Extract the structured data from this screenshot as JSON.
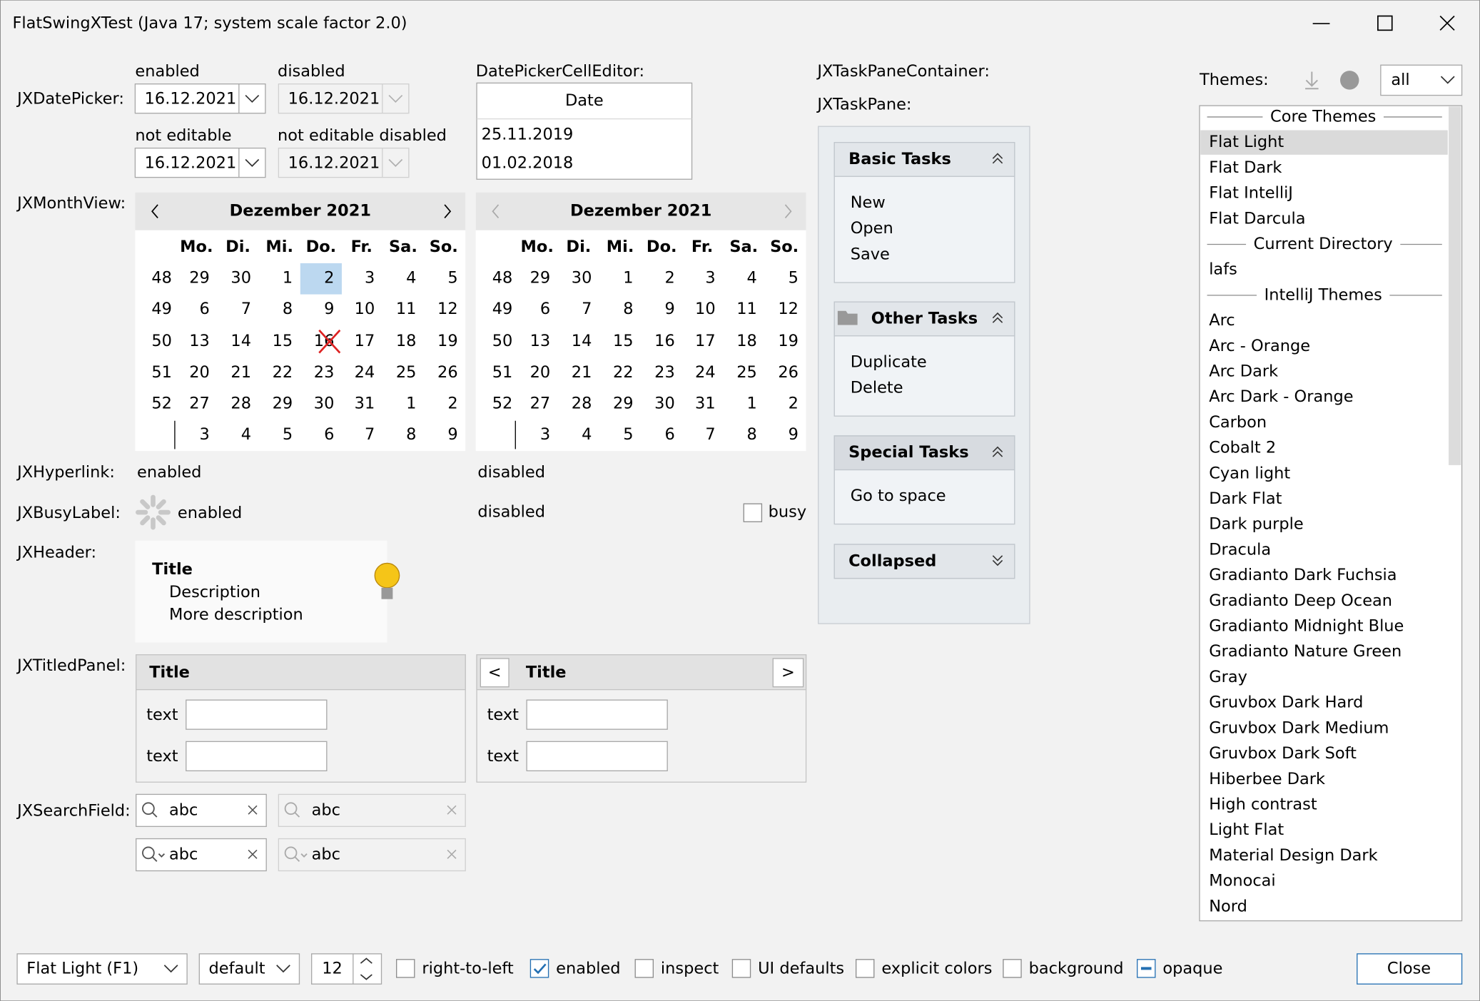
{
  "window": {
    "title": "FlatSwingXTest (Java 17;  system scale factor 2.0)"
  },
  "rows": [
    "JXDatePicker:",
    "JXMonthView:",
    "JXHyperlink:",
    "JXBusyLabel:",
    "JXHeader:",
    "JXTitledPanel:",
    "JXSearchField:"
  ],
  "datePicker": {
    "labels": [
      "enabled",
      "disabled",
      "not editable",
      "not editable disabled"
    ],
    "value": "16.12.2021"
  },
  "cellEditor": {
    "label": "DatePickerCellEditor:",
    "header": "Date",
    "rows": [
      "25.11.2019",
      "01.02.2018"
    ]
  },
  "monthView": {
    "title": "Dezember 2021",
    "weekdays": [
      "Mo.",
      "Di.",
      "Mi.",
      "Do.",
      "Fr.",
      "Sa.",
      "So."
    ],
    "weeks": [
      {
        "week": 48,
        "days": [
          29,
          30,
          1,
          2,
          3,
          4,
          5
        ]
      },
      {
        "week": 49,
        "days": [
          6,
          7,
          8,
          9,
          10,
          11,
          12
        ]
      },
      {
        "week": 50,
        "days": [
          13,
          14,
          15,
          16,
          17,
          18,
          19
        ]
      },
      {
        "week": 51,
        "days": [
          20,
          21,
          22,
          23,
          24,
          25,
          26
        ]
      },
      {
        "week": 52,
        "days": [
          27,
          28,
          29,
          30,
          31,
          1,
          2
        ]
      },
      {
        "days": [
          3,
          4,
          5,
          6,
          7,
          8,
          9
        ]
      }
    ],
    "selected": [
      0,
      3
    ],
    "flagged": [
      1,
      3
    ],
    "crossed": [
      2,
      3
    ]
  },
  "hyperlink": {
    "enabled": "enabled",
    "disabled": "disabled"
  },
  "busy": {
    "enabled": "enabled",
    "disabled": "disabled",
    "checkbox": "busy"
  },
  "header": {
    "title": "Title",
    "description": [
      "Description",
      "More description"
    ]
  },
  "titledPanel": {
    "title": "Title",
    "fieldLabel": "text",
    "prev": "<",
    "next": ">"
  },
  "searchField": {
    "text": "abc"
  },
  "taskPane": {
    "containerLabel": "JXTaskPaneContainer:",
    "paneLabel": "JXTaskPane:",
    "panes": [
      {
        "title": "Basic Tasks",
        "items": [
          "New",
          "Open",
          "Save"
        ]
      },
      {
        "title": "Other Tasks",
        "icon": "folder",
        "items": [
          "Duplicate",
          "Delete"
        ]
      },
      {
        "title": "Special Tasks",
        "special": true,
        "items": [
          "Go to space"
        ]
      },
      {
        "title": "Collapsed",
        "collapsed": true,
        "items": []
      }
    ]
  },
  "themes": {
    "label": "Themes:",
    "filter": "all",
    "list": [
      {
        "header": "Core Themes"
      },
      {
        "name": "Flat Light",
        "selected": true
      },
      {
        "name": "Flat Dark"
      },
      {
        "name": "Flat IntelliJ"
      },
      {
        "name": "Flat Darcula"
      },
      {
        "header": "Current Directory"
      },
      {
        "name": "lafs"
      },
      {
        "header": "IntelliJ Themes"
      },
      {
        "name": "Arc"
      },
      {
        "name": "Arc - Orange"
      },
      {
        "name": "Arc Dark"
      },
      {
        "name": "Arc Dark - Orange"
      },
      {
        "name": "Carbon"
      },
      {
        "name": "Cobalt 2"
      },
      {
        "name": "Cyan light"
      },
      {
        "name": "Dark Flat"
      },
      {
        "name": "Dark purple"
      },
      {
        "name": "Dracula"
      },
      {
        "name": "Gradianto Dark Fuchsia"
      },
      {
        "name": "Gradianto Deep Ocean"
      },
      {
        "name": "Gradianto Midnight Blue"
      },
      {
        "name": "Gradianto Nature Green"
      },
      {
        "name": "Gray"
      },
      {
        "name": "Gruvbox Dark Hard"
      },
      {
        "name": "Gruvbox Dark Medium"
      },
      {
        "name": "Gruvbox Dark Soft"
      },
      {
        "name": "Hiberbee Dark"
      },
      {
        "name": "High contrast"
      },
      {
        "name": "Light Flat"
      },
      {
        "name": "Material Design Dark"
      },
      {
        "name": "Monocai"
      },
      {
        "name": "Nord"
      }
    ]
  },
  "footer": {
    "theme": "Flat Light (F1)",
    "font": "default",
    "size": 12,
    "checkboxes": [
      {
        "label": "right-to-left",
        "state": "off"
      },
      {
        "label": "enabled",
        "state": "on"
      },
      {
        "label": "inspect",
        "state": "off"
      },
      {
        "label": "UI defaults",
        "state": "off"
      },
      {
        "label": "explicit colors",
        "state": "off"
      },
      {
        "label": "background",
        "state": "off"
      },
      {
        "label": "opaque",
        "state": "mixed"
      }
    ],
    "close": "Close"
  }
}
